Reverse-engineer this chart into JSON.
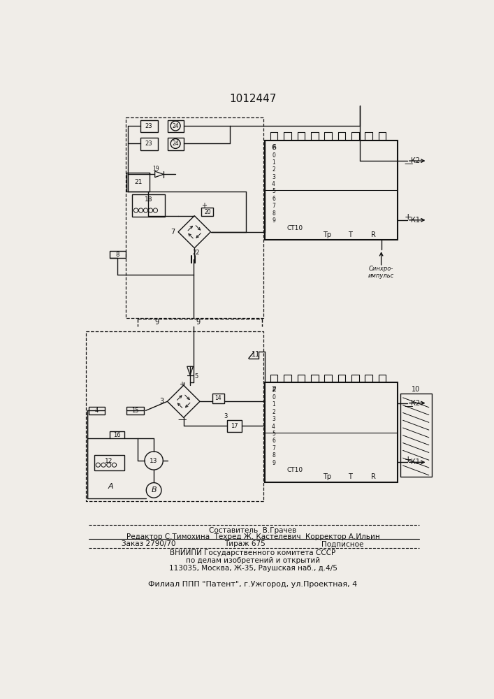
{
  "title": "1012447",
  "bg_color": "#f0ede8",
  "lc": "#111111",
  "footer_line1": "Составитель  В.Грачев",
  "footer_line2": "Редактор С.Тимохина  Техред Ж. Кастелевич  Корректор А.Ильин",
  "footer_line3a": "Заказ 2790/70",
  "footer_line3b": "Тираж 675",
  "footer_line3c": "Подписное",
  "footer_line4": "ВНИИПИ Государственного комитета СССР",
  "footer_line5": "по делам изобретений и открытий",
  "footer_line6": "113035, Москва, Ж-35, Раушская наб., д.4/5",
  "footer_line7": "Филиал ППП \"Патент\", г.Ужгород, ул.Проектная, 4"
}
